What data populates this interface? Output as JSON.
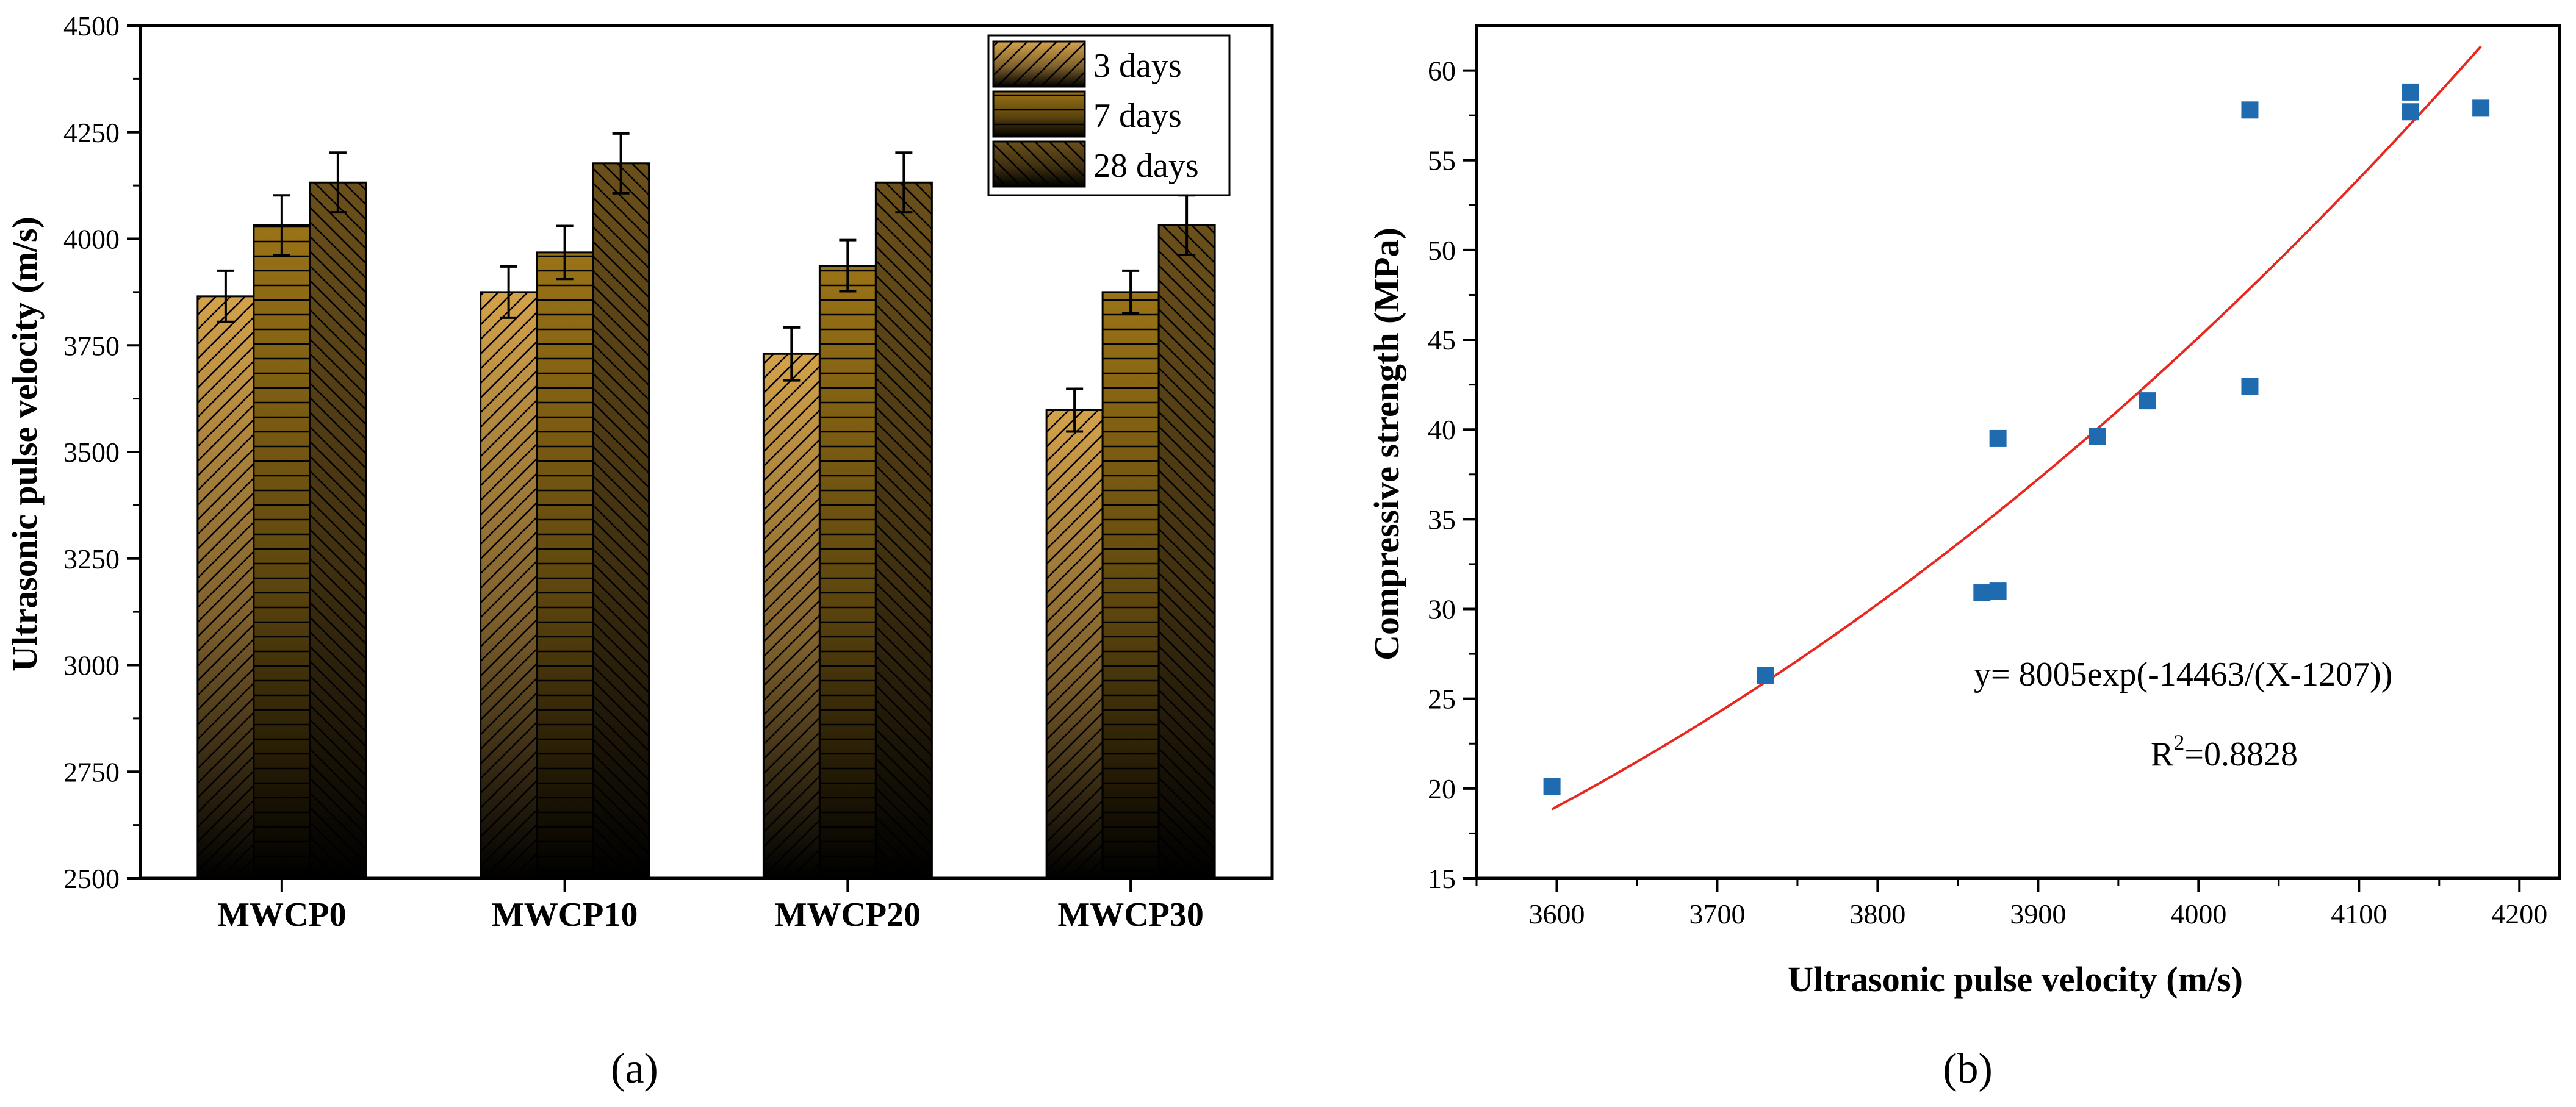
{
  "panels": {
    "a": {
      "label": "(a)"
    },
    "b": {
      "label": "(b)"
    }
  },
  "chart_data": [
    {
      "type": "bar",
      "panel": "a",
      "title": "",
      "xlabel": "",
      "ylabel": "Ultrasonic pulse velocity (m/s)",
      "ylim": [
        2500,
        4500
      ],
      "yticks": [
        2500,
        2750,
        3000,
        3250,
        3500,
        3750,
        4000,
        4250,
        4500
      ],
      "categories": [
        "MWCP0",
        "MWCP10",
        "MWCP20",
        "MWCP30"
      ],
      "series": [
        {
          "name": "3 days",
          "values": [
            3865,
            3875,
            3730,
            3598
          ],
          "errors": [
            60,
            60,
            62,
            50
          ],
          "color": "#d4a24a"
        },
        {
          "name": "7 days",
          "values": [
            4032,
            3968,
            3937,
            3875
          ],
          "errors": [
            70,
            62,
            60,
            50
          ],
          "color": "#9a7317"
        },
        {
          "name": "28 days",
          "values": [
            4132,
            4177,
            4132,
            4032
          ],
          "errors": [
            70,
            70,
            70,
            70
          ],
          "color": "#6b501a"
        }
      ],
      "legend": "top-right",
      "grid": false
    },
    {
      "type": "scatter",
      "panel": "b",
      "title": "",
      "xlabel": "Ultrasonic pulse velocity (m/s)",
      "ylabel": "Compressive strength (MPa)",
      "xlim": [
        3550,
        4225
      ],
      "ylim": [
        15,
        62.5
      ],
      "xticks": [
        3600,
        3700,
        3800,
        3900,
        4000,
        4100,
        4200
      ],
      "yticks": [
        15,
        20,
        25,
        30,
        35,
        40,
        45,
        50,
        55,
        60
      ],
      "points": [
        {
          "x": 3597,
          "y": 20.1
        },
        {
          "x": 3730,
          "y": 26.3
        },
        {
          "x": 3865,
          "y": 30.9
        },
        {
          "x": 3875,
          "y": 31.0
        },
        {
          "x": 3875,
          "y": 39.5
        },
        {
          "x": 3937,
          "y": 39.6
        },
        {
          "x": 3968,
          "y": 41.6
        },
        {
          "x": 4032,
          "y": 42.4
        },
        {
          "x": 4032,
          "y": 57.8
        },
        {
          "x": 4132,
          "y": 57.7
        },
        {
          "x": 4132,
          "y": 58.8
        },
        {
          "x": 4176,
          "y": 57.9
        }
      ],
      "point_color": "#1f6bb0",
      "fit": {
        "a": 8005,
        "b": -14463,
        "c": 1207,
        "x_range": [
          3597,
          4176
        ],
        "color": "#e8281e",
        "equation_label": "y= 8005exp(-14463/(X-1207))",
        "r2_prefix": "R",
        "r2_sup": "2",
        "r2_value": "=0.8828"
      },
      "grid": false
    }
  ]
}
